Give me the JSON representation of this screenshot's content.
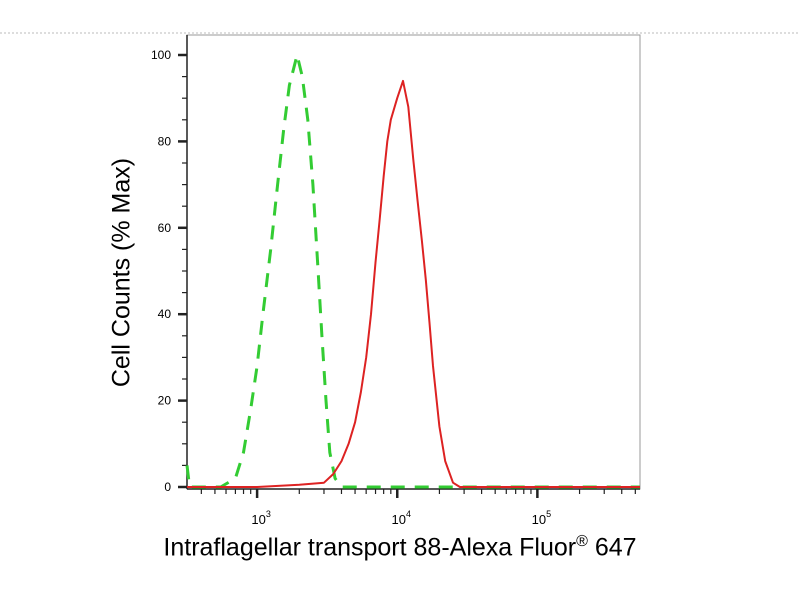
{
  "chart_data": {
    "type": "line",
    "title": "",
    "xlabel": "Intraflagellar transport 88-Alexa Fluor",
    "xlabel_sup": "®",
    "xlabel_suffix": " 647",
    "ylabel": "Cell Counts (% Max)",
    "xscale": "log",
    "xlim": [
      316,
      540000
    ],
    "ylim": [
      0,
      100
    ],
    "yticks": [
      0,
      20,
      40,
      60,
      80,
      100
    ],
    "xticks": [
      {
        "base": "10",
        "exp": "3",
        "value": 1000
      },
      {
        "base": "10",
        "exp": "4",
        "value": 10000
      },
      {
        "base": "10",
        "exp": "5",
        "value": 100000
      }
    ],
    "grid": false,
    "legend": "none",
    "series": [
      {
        "color": "#33cc33",
        "style": "dashed",
        "x": [
          316,
          330,
          400,
          550,
          700,
          800,
          900,
          1000,
          1100,
          1250,
          1400,
          1550,
          1700,
          1930,
          2100,
          2300,
          2500,
          2700,
          2900,
          3100,
          3300,
          3600,
          4000,
          6000,
          10000,
          20000,
          540000
        ],
        "y": [
          5,
          0,
          0,
          0,
          2,
          8,
          18,
          28,
          40,
          55,
          70,
          83,
          93,
          100,
          95,
          85,
          70,
          52,
          35,
          20,
          8,
          2,
          0,
          0,
          0,
          0,
          0
        ]
      },
      {
        "color": "#dd2222",
        "style": "solid",
        "x": [
          316,
          1000,
          2000,
          3000,
          3500,
          4000,
          4500,
          5000,
          5500,
          6000,
          6500,
          7000,
          7500,
          8000,
          8500,
          9000,
          10000,
          11000,
          12000,
          13000,
          14000,
          15000,
          16000,
          17000,
          18000,
          20000,
          22000,
          25000,
          28000,
          540000
        ],
        "y": [
          0,
          0,
          0.5,
          1,
          3,
          6,
          10,
          15,
          22,
          30,
          40,
          52,
          62,
          72,
          80,
          85,
          90,
          94,
          88,
          76,
          66,
          57,
          48,
          38,
          28,
          14,
          6,
          1,
          0,
          0
        ]
      }
    ]
  }
}
